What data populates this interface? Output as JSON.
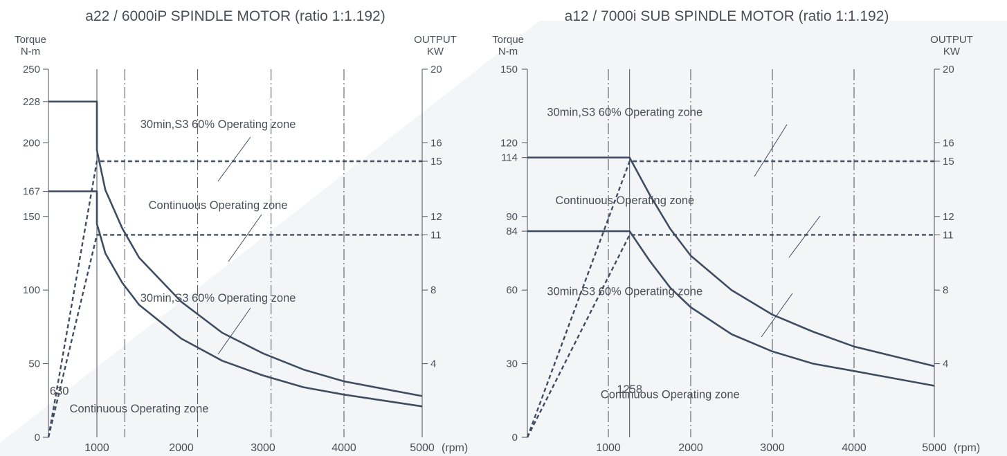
{
  "chart_data": [
    {
      "type": "line",
      "title": "a22 / 6000iP SPINDLE MOTOR (ratio 1:1.192)",
      "ylabel_left": [
        "Torque",
        "N-m"
      ],
      "ylabel_right": [
        "OUTPUT",
        "KW"
      ],
      "x_unit": "(rpm)",
      "xlim": [
        420,
        5000
      ],
      "ylim_left": [
        0,
        250
      ],
      "ylim_right": [
        0,
        20
      ],
      "x_ticks": [
        1000,
        2000,
        3000,
        4000,
        5000
      ],
      "x_tick_labels": [
        "1000",
        "2000",
        "3000",
        "4000",
        "5000"
      ],
      "y_left_ticks": [
        0,
        50,
        100,
        150,
        167,
        200,
        228,
        250
      ],
      "y_right_ticks": [
        4,
        8,
        11,
        12,
        15,
        16,
        20
      ],
      "vlines_solid": [
        1000
      ],
      "vlines_dashdot": [
        1330,
        2200,
        3100,
        4000
      ],
      "series": [
        {
          "axis": "left",
          "style": "solid",
          "x": [
            420,
            1000,
            1000,
            1100,
            1300,
            1500,
            2000,
            2500,
            3000,
            3500,
            4000,
            4500,
            5000
          ],
          "y": [
            228,
            228,
            195,
            168,
            142,
            122,
            92,
            71,
            57,
            46,
            38,
            33,
            28
          ]
        },
        {
          "axis": "left",
          "style": "solid",
          "x": [
            420,
            1000,
            1000,
            1100,
            1300,
            1500,
            2000,
            2500,
            3000,
            3500,
            4000,
            4500,
            5000
          ],
          "y": [
            167,
            167,
            145,
            125,
            105,
            90,
            67,
            52,
            42,
            34,
            29,
            25,
            21
          ]
        },
        {
          "axis": "right",
          "style": "dashed",
          "x": [
            420,
            1000,
            5000
          ],
          "y": [
            0,
            15,
            15
          ]
        },
        {
          "axis": "right",
          "style": "dashed",
          "x": [
            420,
            1000,
            5000
          ],
          "y": [
            0,
            11,
            11
          ]
        }
      ],
      "annotations": [
        {
          "text": "30min,S3 60% Operating zone",
          "x": 2450,
          "y": 210,
          "pointer": [
            1000,
            165
          ]
        },
        {
          "text": "Continuous Operating zone",
          "x": 2450,
          "y": 155,
          "pointer": [
            1000,
            108
          ]
        },
        {
          "text": "30min,S3 60% Operating zone",
          "x": 2450,
          "y": 92,
          "pointer": [
            1000,
            52
          ]
        },
        {
          "text": "Continuous Operating zone",
          "x": 1500,
          "y": 17
        },
        {
          "text": "630",
          "x": 550,
          "y": 29
        }
      ]
    },
    {
      "type": "line",
      "title": "a12 / 7000i SUB SPINDLE MOTOR (ratio 1:1.192)",
      "ylabel_left": [
        "Torque",
        "N-m"
      ],
      "ylabel_right": [
        "OUTPUT",
        "KW"
      ],
      "x_unit": "(rpm)",
      "xlim": [
        0,
        5000
      ],
      "ylim_left": [
        0,
        150
      ],
      "ylim_right": [
        0,
        20
      ],
      "x_ticks": [
        1000,
        2000,
        3000,
        4000,
        5000
      ],
      "x_tick_labels": [
        "1000",
        "2000",
        "3000",
        "4000",
        "5000"
      ],
      "y_left_ticks": [
        0,
        30,
        60,
        84,
        90,
        114,
        120,
        150
      ],
      "y_right_ticks": [
        4,
        8,
        11,
        12,
        15,
        16,
        20
      ],
      "vlines_solid": [
        1258
      ],
      "vlines_dashdot": [
        1000,
        2000,
        3000,
        4000
      ],
      "series": [
        {
          "axis": "left",
          "style": "solid",
          "x": [
            0,
            1258,
            1500,
            1750,
            2000,
            2500,
            3000,
            3500,
            4000,
            4500,
            5000
          ],
          "y": [
            114,
            114,
            99,
            85,
            74,
            60,
            50,
            43,
            37,
            33,
            29
          ]
        },
        {
          "axis": "left",
          "style": "solid",
          "x": [
            0,
            1258,
            1500,
            1750,
            2000,
            2500,
            3000,
            3500,
            4000,
            4500,
            5000
          ],
          "y": [
            84,
            84,
            72,
            61,
            53,
            42,
            35,
            30,
            27,
            24,
            21
          ]
        },
        {
          "axis": "right",
          "style": "dashed",
          "x": [
            0,
            1258,
            5000
          ],
          "y": [
            0,
            15,
            15
          ]
        },
        {
          "axis": "right",
          "style": "dashed",
          "x": [
            0,
            1258,
            5000
          ],
          "y": [
            0,
            11,
            11
          ]
        }
      ],
      "annotations": [
        {
          "text": "30min,S3 60% Operating zone",
          "x": 1200,
          "y": 131,
          "pointer": [
            1400,
            108
          ]
        },
        {
          "text": "Continuous Operating zone",
          "x": 1200,
          "y": 95,
          "pointer": [
            1800,
            73
          ]
        },
        {
          "text": "30min,S3 60% Operating zone",
          "x": 1200,
          "y": 58,
          "pointer": [
            1800,
            39
          ]
        },
        {
          "text": "Continuous Operating zone",
          "x": 1750,
          "y": 16
        },
        {
          "text": "1258",
          "x": 1258,
          "y": 18
        }
      ]
    }
  ],
  "colors": {
    "line": "#3f4d63",
    "text": "#4a4f58",
    "grid": "#4a4f58",
    "bg_shape": "#f1f3f5"
  }
}
